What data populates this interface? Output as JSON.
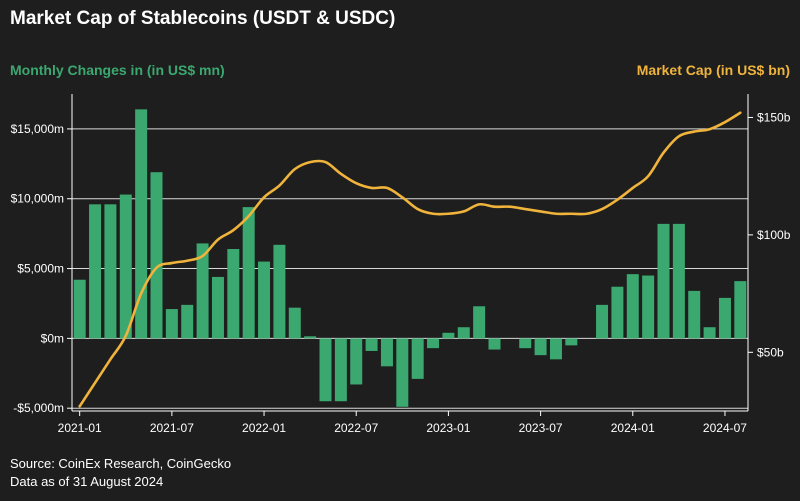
{
  "title": "Market Cap of Stablecoins (USDT & USDC)",
  "left_axis_label": "Monthly Changes in (in US$ mn)",
  "right_axis_label": "Market Cap (in US$ bn)",
  "source": "Source: CoinEx Research, CoinGecko",
  "data_note": "Data as of 31 August 2024",
  "colors": {
    "background": "#1e1e1e",
    "bars": "#3ba870",
    "line": "#f0b43c",
    "left_label": "#3ba870",
    "right_label": "#f0b43c",
    "grid": "#d9d9d9"
  },
  "chart_data": {
    "type": "bar+line",
    "x_tick_labels": [
      "2021-01",
      "2021-07",
      "2022-01",
      "2022-07",
      "2023-01",
      "2023-07",
      "2024-01",
      "2024-07"
    ],
    "y_left": {
      "ticks": [
        -5000,
        0,
        5000,
        10000,
        15000
      ],
      "tick_labels": [
        "-$5,000m",
        "$0m",
        "$5,000m",
        "$10,000m",
        "$15,000m"
      ],
      "range": [
        -5200,
        17500
      ]
    },
    "y_right": {
      "ticks": [
        50,
        100,
        150
      ],
      "tick_labels": [
        "$50b",
        "$100b",
        "$150b"
      ],
      "range": [
        25,
        160
      ]
    },
    "grid": true,
    "months": [
      "2021-01",
      "2021-02",
      "2021-03",
      "2021-04",
      "2021-05",
      "2021-06",
      "2021-07",
      "2021-08",
      "2021-09",
      "2021-10",
      "2021-11",
      "2021-12",
      "2022-01",
      "2022-02",
      "2022-03",
      "2022-04",
      "2022-05",
      "2022-06",
      "2022-07",
      "2022-08",
      "2022-09",
      "2022-10",
      "2022-11",
      "2022-12",
      "2023-01",
      "2023-02",
      "2023-03",
      "2023-04",
      "2023-05",
      "2023-06",
      "2023-07",
      "2023-08",
      "2023-09",
      "2023-10",
      "2023-11",
      "2023-12",
      "2024-01",
      "2024-02",
      "2024-03",
      "2024-04",
      "2024-05",
      "2024-06",
      "2024-07",
      "2024-08"
    ],
    "series": [
      {
        "name": "Monthly Changes in (in US$ mn)",
        "type": "bar",
        "axis": "left",
        "values": [
          4200,
          9600,
          9600,
          10300,
          16400,
          11900,
          2100,
          2400,
          6800,
          4400,
          6400,
          9400,
          5500,
          6700,
          2200,
          150,
          -4500,
          -4500,
          -3300,
          -900,
          -2000,
          -4900,
          -2900,
          -700,
          400,
          800,
          2300,
          -800,
          0,
          -700,
          -1200,
          -1500,
          -500,
          0,
          2400,
          3700,
          4600,
          4500,
          8200,
          8200,
          3400,
          800,
          2900,
          4100
        ]
      },
      {
        "name": "Market Cap (in US$ bn)",
        "type": "line",
        "axis": "right",
        "values": [
          27,
          37,
          47,
          57,
          75,
          86,
          88,
          89,
          91,
          98,
          102,
          108,
          116,
          121,
          128,
          131,
          131,
          126,
          122,
          120,
          120,
          116,
          111,
          109,
          109,
          110,
          113,
          112,
          112,
          111,
          110,
          109,
          109,
          109,
          111,
          115,
          120,
          125,
          135,
          142,
          144,
          145,
          148,
          152
        ]
      }
    ]
  }
}
